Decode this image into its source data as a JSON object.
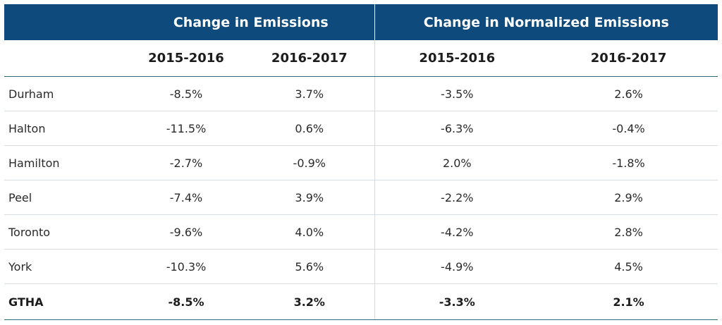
{
  "groups": {
    "emissions": "Change in Emissions",
    "normalized": "Change in Normalized Emissions"
  },
  "years": {
    "e1": "2015-2016",
    "e2": "2016-2017",
    "n1": "2015-2016",
    "n2": "2016-2017"
  },
  "rows": [
    {
      "region": "Durham",
      "e1": "-8.5%",
      "e2": "3.7%",
      "n1": "-3.5%",
      "n2": "2.6%"
    },
    {
      "region": "Halton",
      "e1": "-11.5%",
      "e2": "0.6%",
      "n1": "-6.3%",
      "n2": "-0.4%"
    },
    {
      "region": "Hamilton",
      "e1": "-2.7%",
      "e2": "-0.9%",
      "n1": "2.0%",
      "n2": "-1.8%"
    },
    {
      "region": "Peel",
      "e1": "-7.4%",
      "e2": "3.9%",
      "n1": "-2.2%",
      "n2": "2.9%"
    },
    {
      "region": "Toronto",
      "e1": "-9.6%",
      "e2": "4.0%",
      "n1": "-4.2%",
      "n2": "2.8%"
    },
    {
      "region": "York",
      "e1": "-10.3%",
      "e2": "5.6%",
      "n1": "-4.9%",
      "n2": "4.5%"
    }
  ],
  "total": {
    "region": "GTHA",
    "e1": "-8.5%",
    "e2": "3.2%",
    "n1": "-3.3%",
    "n2": "2.1%"
  },
  "colors": {
    "header_bg": "#0e4a7b",
    "header_text": "#ffffff",
    "rule": "#2d6a7a",
    "row_divider": "#d5dde2"
  }
}
